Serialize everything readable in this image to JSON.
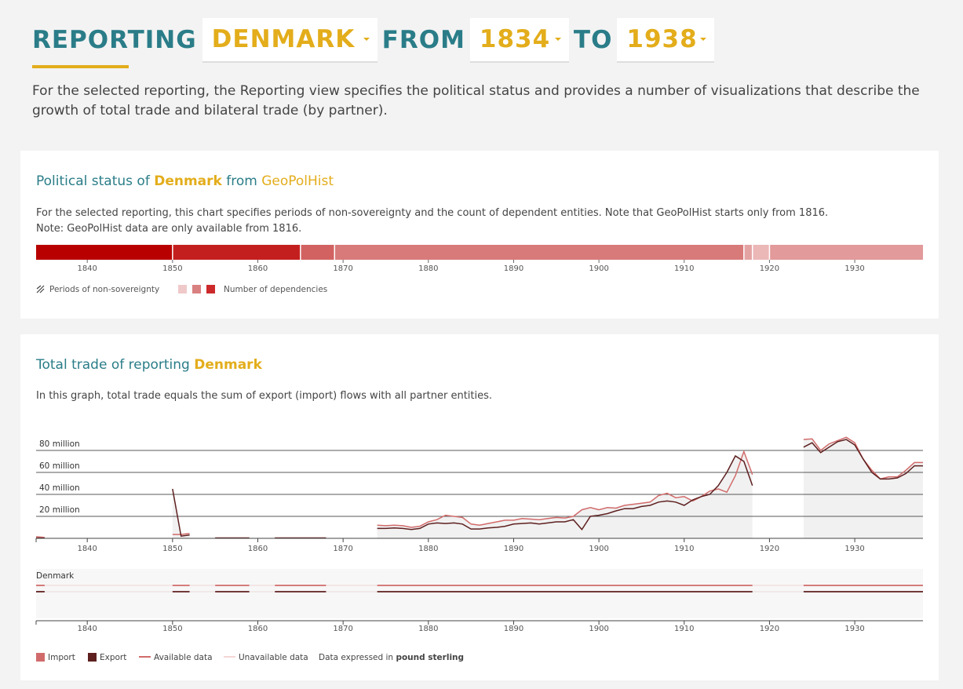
{
  "header": {
    "reporting_label": "REPORTING",
    "country": "DENMARK",
    "from_label": "FROM",
    "from_year": "1834",
    "to_label": "TO",
    "to_year": "1938"
  },
  "intro": "For the selected reporting, the Reporting view specifies the political status and provides a number of visualizations that describe the growth of total trade and bilateral trade (by partner).",
  "political": {
    "title_prefix": "Political status of",
    "country": "Denmark",
    "title_mid": "from",
    "source": "GeoPolHist",
    "desc_line1": "For the selected reporting, this chart specifies periods of non-sovereignty and the count of dependent entities. Note that GeoPolHist starts only from 1816.",
    "desc_line2": "Note: GeoPolHist data are only available from 1816.",
    "legend_nonsov": "Periods of non-sovereignty",
    "legend_dep": "Number of dependencies",
    "legend_colors": [
      "#efc9c9",
      "#d98080",
      "#cc2a2a"
    ],
    "segments": [
      {
        "from": 1834,
        "to": 1850,
        "color": "#b80000"
      },
      {
        "from": 1850,
        "to": 1865,
        "color": "#c41f1f"
      },
      {
        "from": 1865,
        "to": 1869,
        "color": "#d26262"
      },
      {
        "from": 1869,
        "to": 1917,
        "color": "#d87a7a"
      },
      {
        "from": 1917,
        "to": 1918,
        "color": "#e4a3a3"
      },
      {
        "from": 1918,
        "to": 1920,
        "color": "#ebb7b7"
      },
      {
        "from": 1920,
        "to": 1938,
        "color": "#e29a9a"
      }
    ]
  },
  "trade": {
    "title_prefix": "Total trade of reporting",
    "country": "Denmark",
    "desc": "In this graph, total trade equals the sum of export (import) flows with all partner entities.",
    "availability_label": "Denmark",
    "legend_import": "Import",
    "legend_export": "Export",
    "legend_available": "Available data",
    "legend_unavailable": "Unavailable data",
    "currency_prefix": "Data expressed in",
    "currency": "pound sterling",
    "import_color": "#d16b6b",
    "export_color": "#5e1f1f"
  },
  "chart_data": [
    {
      "type": "bar",
      "title": "Political status of Denmark from GeoPolHist",
      "xlim": [
        1834,
        1938
      ],
      "x_ticks": [
        "1840",
        "1850",
        "1860",
        "1870",
        "1880",
        "1890",
        "1900",
        "1910",
        "1920",
        "1930"
      ],
      "segments_ref": "political.segments"
    },
    {
      "type": "line",
      "title": "Total trade of reporting Denmark",
      "xlim": [
        1834,
        1938
      ],
      "ylim": [
        0,
        100
      ],
      "x_ticks": [
        "1840",
        "1850",
        "1860",
        "1870",
        "1880",
        "1890",
        "1900",
        "1910",
        "1920",
        "1930"
      ],
      "y_ticks": [
        {
          "value": 20,
          "label": "20 million"
        },
        {
          "value": 40,
          "label": "40 million"
        },
        {
          "value": 60,
          "label": "60 million"
        },
        {
          "value": 80,
          "label": "80 million"
        }
      ],
      "series": [
        {
          "name": "Import",
          "segments": [
            [
              [
                1834,
                1.5
              ],
              [
                1835,
                0.8
              ]
            ],
            [
              [
                1850,
                3.5
              ],
              [
                1851,
                3.5
              ],
              [
                1852,
                4.5
              ]
            ],
            [
              [
                1855,
                0.4
              ],
              [
                1859,
                0.4
              ]
            ],
            [
              [
                1862,
                0.4
              ],
              [
                1868,
                0.4
              ]
            ],
            [
              [
                1874,
                12
              ],
              [
                1875,
                11.5
              ],
              [
                1876,
                12
              ],
              [
                1877,
                11.5
              ],
              [
                1878,
                10
              ],
              [
                1879,
                11
              ],
              [
                1880,
                15
              ],
              [
                1881,
                17
              ],
              [
                1882,
                21
              ],
              [
                1883,
                20
              ],
              [
                1884,
                19
              ],
              [
                1885,
                13
              ],
              [
                1886,
                12
              ],
              [
                1887,
                13.5
              ],
              [
                1888,
                15
              ],
              [
                1889,
                16.5
              ],
              [
                1890,
                16.5
              ],
              [
                1891,
                18
              ],
              [
                1892,
                17.5
              ],
              [
                1893,
                17
              ],
              [
                1894,
                18
              ],
              [
                1895,
                19
              ],
              [
                1896,
                18.5
              ],
              [
                1897,
                20
              ],
              [
                1898,
                26
              ],
              [
                1899,
                28
              ],
              [
                1900,
                26
              ],
              [
                1901,
                28
              ],
              [
                1902,
                27.5
              ],
              [
                1903,
                30
              ],
              [
                1904,
                31
              ],
              [
                1905,
                32
              ],
              [
                1906,
                33
              ],
              [
                1907,
                39
              ],
              [
                1908,
                41
              ],
              [
                1909,
                37
              ],
              [
                1910,
                38
              ],
              [
                1911,
                34
              ],
              [
                1912,
                38
              ],
              [
                1913,
                43
              ],
              [
                1914,
                45
              ],
              [
                1915,
                42
              ],
              [
                1916,
                57
              ],
              [
                1917,
                79
              ],
              [
                1918,
                58
              ]
            ],
            [
              [
                1924,
                90
              ],
              [
                1925,
                90.5
              ],
              [
                1926,
                80
              ],
              [
                1927,
                86
              ],
              [
                1928,
                89
              ],
              [
                1929,
                92
              ],
              [
                1930,
                87
              ],
              [
                1931,
                72
              ],
              [
                1932,
                62
              ],
              [
                1933,
                54
              ],
              [
                1934,
                56
              ],
              [
                1935,
                56
              ],
              [
                1936,
                62
              ],
              [
                1937,
                69
              ],
              [
                1938,
                69
              ]
            ]
          ]
        },
        {
          "name": "Export",
          "segments": [
            [
              [
                1834,
                0.3
              ],
              [
                1835,
                0.2
              ]
            ],
            [
              [
                1850,
                45
              ],
              [
                1851,
                2
              ],
              [
                1852,
                3
              ]
            ],
            [
              [
                1855,
                0.3
              ],
              [
                1859,
                0.3
              ]
            ],
            [
              [
                1862,
                0.3
              ],
              [
                1868,
                0.3
              ]
            ],
            [
              [
                1874,
                9
              ],
              [
                1875,
                9
              ],
              [
                1876,
                9.5
              ],
              [
                1877,
                9
              ],
              [
                1878,
                8
              ],
              [
                1879,
                9
              ],
              [
                1880,
                13
              ],
              [
                1881,
                14
              ],
              [
                1882,
                13.5
              ],
              [
                1883,
                14
              ],
              [
                1884,
                13
              ],
              [
                1885,
                8.5
              ],
              [
                1886,
                8.5
              ],
              [
                1887,
                9.5
              ],
              [
                1888,
                10
              ],
              [
                1889,
                11
              ],
              [
                1890,
                13
              ],
              [
                1891,
                13.5
              ],
              [
                1892,
                14
              ],
              [
                1893,
                13
              ],
              [
                1894,
                14
              ],
              [
                1895,
                15
              ],
              [
                1896,
                15
              ],
              [
                1897,
                17
              ],
              [
                1898,
                8
              ],
              [
                1899,
                20
              ],
              [
                1900,
                21
              ],
              [
                1901,
                22.5
              ],
              [
                1902,
                25
              ],
              [
                1903,
                27
              ],
              [
                1904,
                27
              ],
              [
                1905,
                29
              ],
              [
                1906,
                30
              ],
              [
                1907,
                33
              ],
              [
                1908,
                34
              ],
              [
                1909,
                33
              ],
              [
                1910,
                30
              ],
              [
                1911,
                35
              ],
              [
                1912,
                38
              ],
              [
                1913,
                40
              ],
              [
                1914,
                48
              ],
              [
                1915,
                60
              ],
              [
                1916,
                75
              ],
              [
                1917,
                70
              ],
              [
                1918,
                48
              ]
            ],
            [
              [
                1924,
                83
              ],
              [
                1925,
                87
              ],
              [
                1926,
                78
              ],
              [
                1927,
                83
              ],
              [
                1928,
                88
              ],
              [
                1929,
                90
              ],
              [
                1930,
                85
              ],
              [
                1931,
                72
              ],
              [
                1932,
                60
              ],
              [
                1933,
                54
              ],
              [
                1934,
                54
              ],
              [
                1935,
                55
              ],
              [
                1936,
                59
              ],
              [
                1937,
                66
              ],
              [
                1938,
                66
              ]
            ]
          ]
        }
      ]
    }
  ]
}
